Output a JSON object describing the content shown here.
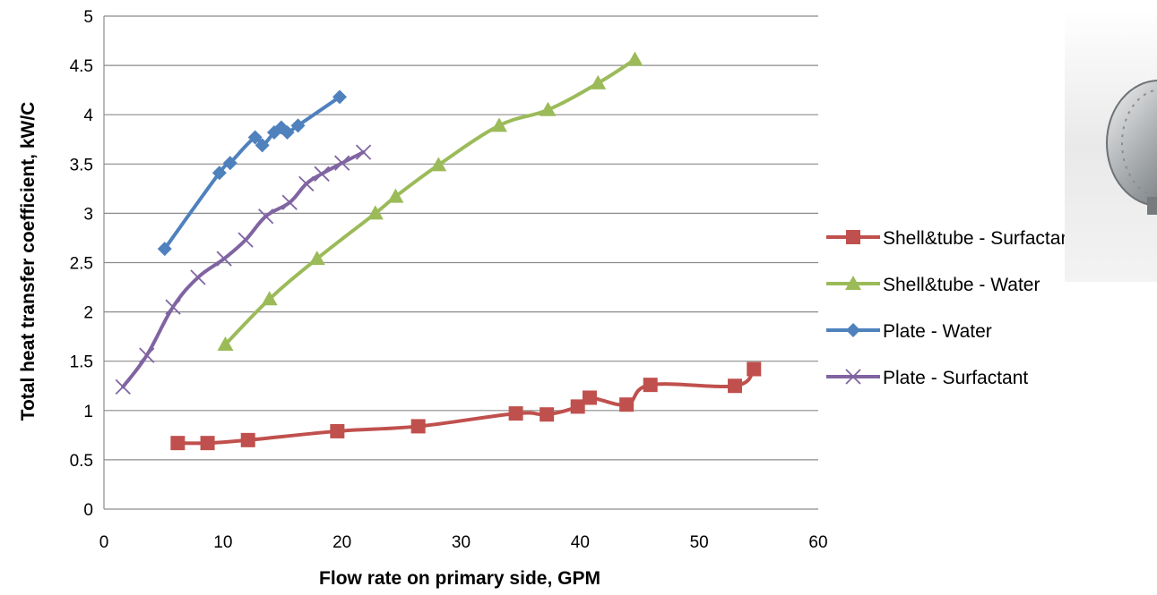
{
  "chart_data": {
    "type": "line",
    "title": "",
    "xlabel": "Flow rate on primary side,  GPM",
    "ylabel": "Total heat transfer coefficient, kW/C",
    "xlim": [
      0,
      60
    ],
    "ylim": [
      0,
      5
    ],
    "x_ticks": [
      "0",
      "10",
      "20",
      "30",
      "40",
      "50",
      "60"
    ],
    "y_ticks": [
      "0",
      "0.5",
      "1",
      "1.5",
      "2",
      "2.5",
      "3",
      "3.5",
      "4",
      "4.5",
      "5"
    ],
    "grid": "horizontal major gridlines",
    "legend_position": "right",
    "series": [
      {
        "name": "Shell&tube - Surfactant",
        "color": "#C0504D",
        "marker": "square",
        "points": [
          [
            6.2,
            0.67
          ],
          [
            8.7,
            0.67
          ],
          [
            12.1,
            0.7
          ],
          [
            19.6,
            0.79
          ],
          [
            26.4,
            0.84
          ],
          [
            34.6,
            0.97
          ],
          [
            37.2,
            0.96
          ],
          [
            39.8,
            1.04
          ],
          [
            40.8,
            1.13
          ],
          [
            43.9,
            1.06
          ],
          [
            45.9,
            1.26
          ],
          [
            53.0,
            1.25
          ],
          [
            54.6,
            1.42
          ]
        ]
      },
      {
        "name": "Shell&tube - Water",
        "color": "#9BBB59",
        "marker": "triangle",
        "points": [
          [
            10.2,
            1.67
          ],
          [
            13.9,
            2.13
          ],
          [
            17.9,
            2.54
          ],
          [
            22.8,
            3.0
          ],
          [
            24.5,
            3.17
          ],
          [
            28.1,
            3.49
          ],
          [
            33.2,
            3.89
          ],
          [
            37.3,
            4.05
          ],
          [
            41.5,
            4.32
          ],
          [
            44.6,
            4.56
          ]
        ]
      },
      {
        "name": "Plate - Water",
        "color": "#4F81BD",
        "marker": "diamond",
        "points": [
          [
            5.1,
            2.64
          ],
          [
            9.7,
            3.41
          ],
          [
            10.6,
            3.51
          ],
          [
            12.7,
            3.77
          ],
          [
            13.3,
            3.69
          ],
          [
            14.3,
            3.82
          ],
          [
            14.9,
            3.87
          ],
          [
            15.4,
            3.82
          ],
          [
            16.3,
            3.89
          ],
          [
            19.8,
            4.18
          ]
        ]
      },
      {
        "name": "Plate - Surfactant",
        "color": "#8064A2",
        "marker": "x",
        "points": [
          [
            1.6,
            1.24
          ],
          [
            3.6,
            1.56
          ],
          [
            5.8,
            2.05
          ],
          [
            7.9,
            2.35
          ],
          [
            10.1,
            2.54
          ],
          [
            11.9,
            2.73
          ],
          [
            13.6,
            2.97
          ],
          [
            15.6,
            3.11
          ],
          [
            17.0,
            3.3
          ],
          [
            18.3,
            3.4
          ],
          [
            20.0,
            3.51
          ],
          [
            21.8,
            3.62
          ]
        ]
      }
    ]
  },
  "photo": {
    "name": "heat-exchanger-photo"
  }
}
